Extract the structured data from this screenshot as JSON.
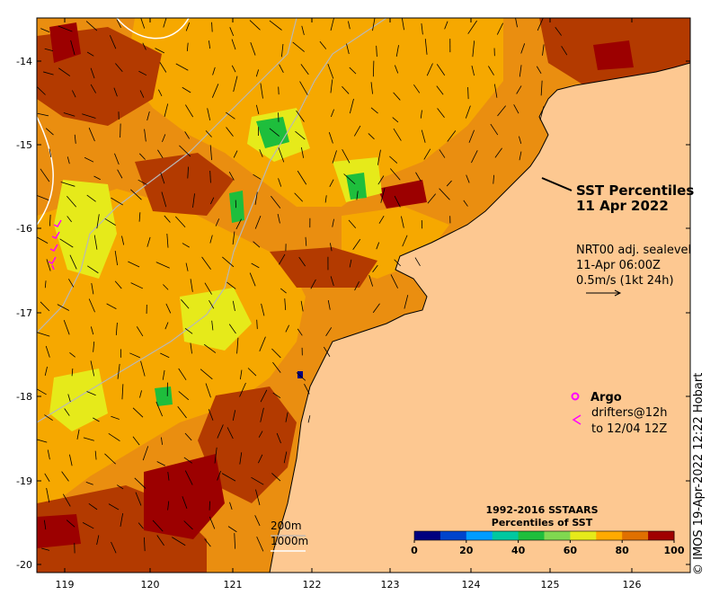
{
  "map": {
    "title_line1": "SST Percentiles",
    "title_line2": "11 Apr 2022",
    "current_label_1": "NRT00 adj. sealevel",
    "current_label_2": "11-Apr 06:00Z",
    "current_label_3": "0.5m/s (1kt 24h)",
    "argo_label": "Argo",
    "drifter_label_1": "drifters@12h",
    "drifter_label_2": "to 12/04 12Z",
    "depth_label_1": "200m",
    "depth_label_2": "1000m",
    "credit": "© IMOS 19-Apr-2022 12:22 Hobart",
    "x_ticks": [
      "119",
      "120",
      "121",
      "122",
      "123",
      "124",
      "125",
      "126"
    ],
    "y_ticks": [
      "-14",
      "-15",
      "-16",
      "-17",
      "-18",
      "-19",
      "-20"
    ],
    "colorbar": {
      "title_1": "1992-2016 SSTAARS",
      "title_2": "Percentiles of SST",
      "ticks": [
        "0",
        "20",
        "40",
        "60",
        "80",
        "100"
      ],
      "colors": [
        "#00007f",
        "#0044cc",
        "#009cff",
        "#00c8a0",
        "#1ebe3c",
        "#80d850",
        "#e6ea1a",
        "#ffaa00",
        "#e07000",
        "#a00000"
      ]
    },
    "colors": {
      "land": "#fdc891",
      "warm": "#e88c10",
      "mid": "#f6a800",
      "hot": "#b33a00",
      "extreme": "#9c0000",
      "drifter": "#ff00ff"
    }
  }
}
